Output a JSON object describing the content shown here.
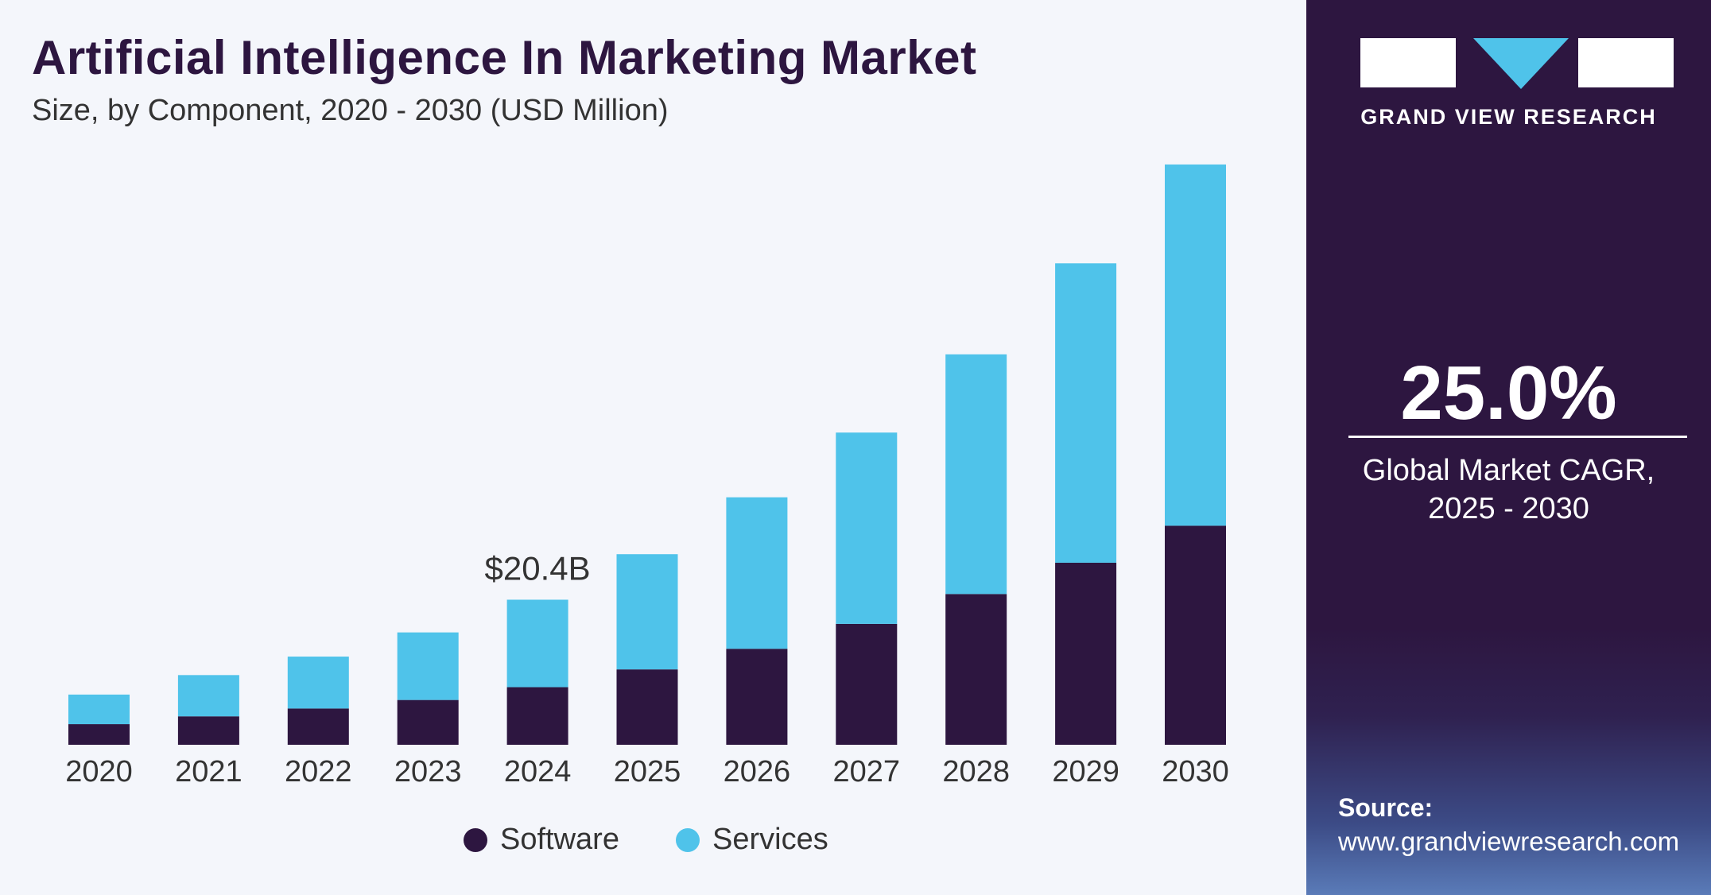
{
  "header": {
    "title": "Artificial Intelligence In Marketing Market",
    "subtitle": "Size, by Component, 2020 - 2030 (USD Million)"
  },
  "brand": {
    "name": "GRAND VIEW RESEARCH",
    "logo_colors": [
      "#ffffff",
      "#4fc3ea"
    ]
  },
  "stats": {
    "cagr": "25.0%",
    "cagr_label_line1": "Global Market CAGR,",
    "cagr_label_line2": "2025 - 2030"
  },
  "source": {
    "label": "Source:",
    "url": "www.grandviewresearch.com"
  },
  "colors": {
    "software": "#2d1640",
    "services": "#4fc3ea",
    "panel": "#2d1640"
  },
  "chart_data": {
    "type": "bar",
    "stacked": true,
    "title": "Artificial Intelligence In Marketing Market",
    "subtitle": "Size, by Component, 2020 - 2030 (USD Million)",
    "categories": [
      "2020",
      "2021",
      "2022",
      "2023",
      "2024",
      "2025",
      "2026",
      "2027",
      "2028",
      "2029",
      "2030"
    ],
    "series": [
      {
        "name": "Software",
        "color": "#2d1640",
        "values": [
          2900,
          4000,
          5100,
          6300,
          8100,
          10600,
          13500,
          17000,
          21200,
          25600,
          30800
        ]
      },
      {
        "name": "Services",
        "color": "#4fc3ea",
        "values": [
          4160,
          5800,
          7300,
          9500,
          12300,
          16200,
          21300,
          26900,
          33700,
          42100,
          50800
        ]
      }
    ],
    "annotations": [
      {
        "category": "2024",
        "text": "$20.4B"
      }
    ],
    "axes": {
      "y_visible": false,
      "grid": false
    },
    "legend": {
      "position": "bottom",
      "entries": [
        "Software",
        "Services"
      ]
    }
  }
}
